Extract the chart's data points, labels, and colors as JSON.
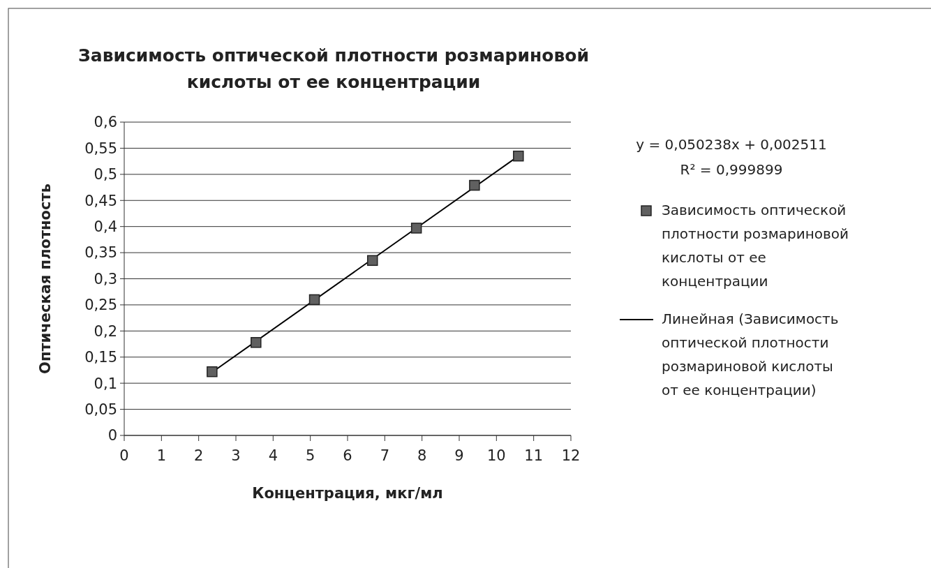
{
  "chart_data": {
    "type": "scatter",
    "title": "Зависимость оптической плотности розмариновой кислоты от ее концентрации",
    "xlabel": "Концентрация, мкг/мл",
    "ylabel": "Оптическая плотность",
    "annotations": [
      "y = 0,050238x + 0,002511",
      "R² = 0,999899"
    ],
    "xlim": [
      0,
      12
    ],
    "xticks": [
      0,
      1,
      2,
      3,
      4,
      5,
      6,
      7,
      8,
      9,
      10,
      11,
      12
    ],
    "ylim": [
      0,
      0.6
    ],
    "yticks": [
      {
        "value": 0,
        "label": "0"
      },
      {
        "value": 0.05,
        "label": "0,05"
      },
      {
        "value": 0.1,
        "label": "0,1"
      },
      {
        "value": 0.15,
        "label": "0,15"
      },
      {
        "value": 0.2,
        "label": "0,2"
      },
      {
        "value": 0.25,
        "label": "0,25"
      },
      {
        "value": 0.3,
        "label": "0,3"
      },
      {
        "value": 0.35,
        "label": "0,35"
      },
      {
        "value": 0.4,
        "label": "0,4"
      },
      {
        "value": 0.45,
        "label": "0,45"
      },
      {
        "value": 0.5,
        "label": "0,5"
      },
      {
        "value": 0.55,
        "label": "0,55"
      },
      {
        "value": 0.6,
        "label": "0,6"
      }
    ],
    "grid": "y",
    "legend": "right",
    "series": [
      {
        "name": "Зависимость оптической плотности розмариновой кислоты от ее концентрации",
        "marker": "square",
        "color": "#606060",
        "x": [
          2.36,
          3.54,
          5.11,
          6.67,
          7.85,
          9.41,
          10.59
        ],
        "values": [
          0.122,
          0.178,
          0.26,
          0.335,
          0.397,
          0.479,
          0.535
        ]
      },
      {
        "name": "Линейная (Зависимость оптической плотности розмариновой кислоты от ее концентрации)",
        "type": "line",
        "color": "#000000",
        "x": [
          2.36,
          10.59
        ],
        "values": [
          0.121,
          0.535
        ],
        "line_style": "solid"
      }
    ]
  }
}
